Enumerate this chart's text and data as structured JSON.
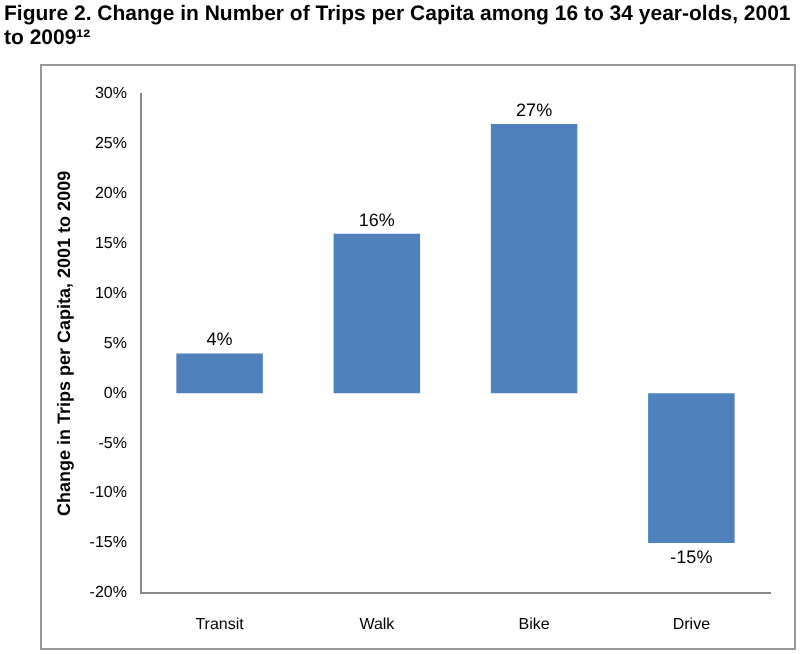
{
  "chart_data": {
    "type": "bar",
    "title": "Figure 2. Change in Number of Trips per Capita among 16 to 34 year-olds, 2001 to 2009¹²",
    "ylabel": "Change in Trips per Capita, 2001 to 2009",
    "categories": [
      "Transit",
      "Walk",
      "Bike",
      "Drive"
    ],
    "values": [
      4,
      16,
      27,
      -15
    ],
    "color": "#4f81bd",
    "value_labels": [
      "4%",
      "16%",
      "27%",
      "-15%"
    ],
    "ylim": [
      -20,
      30
    ],
    "yticks": [
      {
        "value": -20,
        "label": "-20%"
      },
      {
        "value": -15,
        "label": "-15%"
      },
      {
        "value": -10,
        "label": "-10%"
      },
      {
        "value": -5,
        "label": "-5%"
      },
      {
        "value": 0,
        "label": "0%"
      },
      {
        "value": 5,
        "label": "5%"
      },
      {
        "value": 10,
        "label": "10%"
      },
      {
        "value": 15,
        "label": "15%"
      },
      {
        "value": 20,
        "label": "20%"
      },
      {
        "value": 25,
        "label": "25%"
      },
      {
        "value": 30,
        "label": "30%"
      }
    ],
    "grid": false,
    "legend": false
  }
}
